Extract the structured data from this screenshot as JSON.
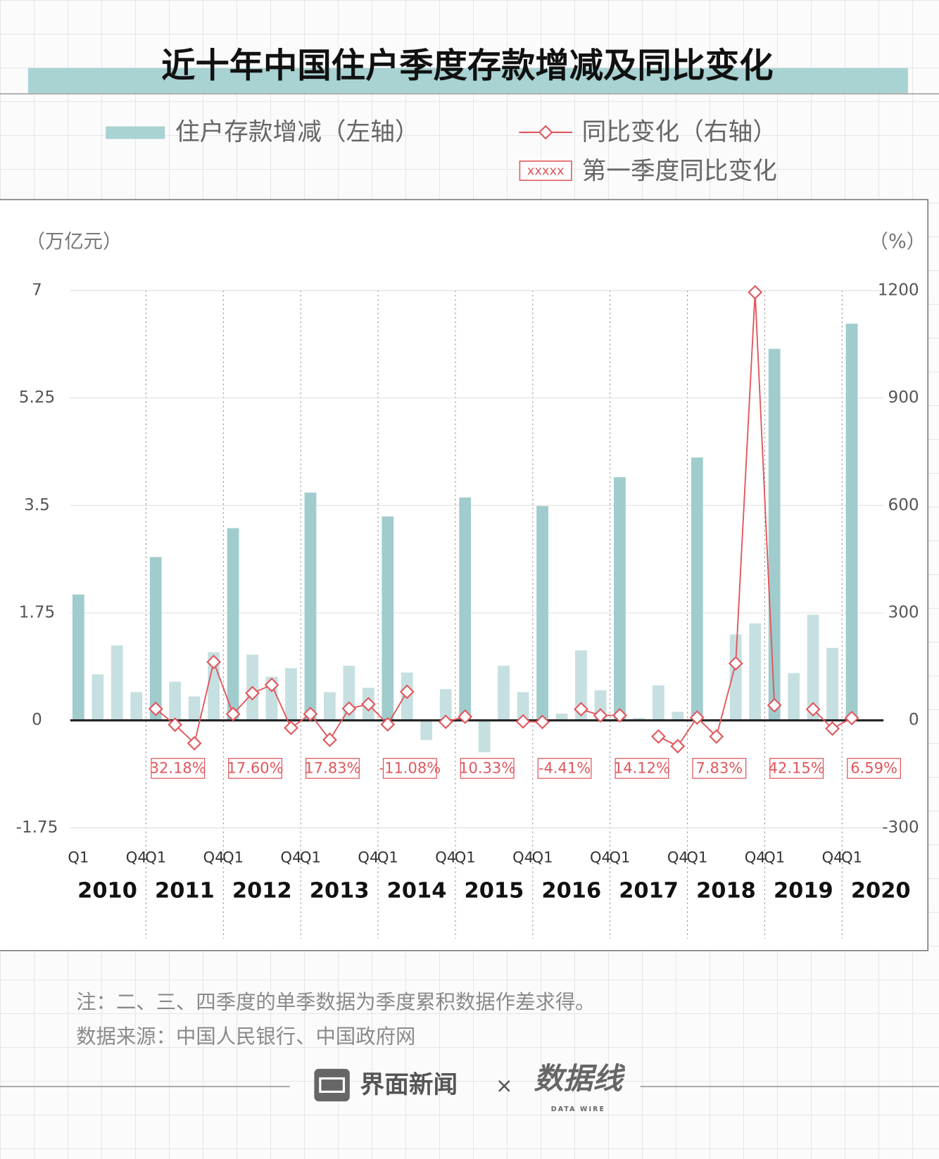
{
  "chart_data": {
    "type": "bar",
    "title": "近十年中国住户季度存款增减及同比变化",
    "y_label": "（万亿元）",
    "y2_label": "（%）",
    "categories": [
      "Q1",
      null,
      null,
      "Q4",
      "Q1",
      null,
      null,
      "Q4",
      "Q1",
      null,
      null,
      "Q4",
      "Q1",
      null,
      null,
      "Q4",
      "Q1",
      null,
      null,
      "Q4",
      "Q1",
      null,
      null,
      "Q4",
      "Q1",
      null,
      null,
      "Q4",
      "Q1",
      null,
      null,
      "Q4",
      "Q1",
      null,
      null,
      "Q4",
      "Q1",
      null,
      null,
      "Q4",
      "Q1"
    ],
    "years": [
      "2010",
      "2011",
      "2012",
      "2013",
      "2014",
      "2015",
      "2016",
      "2017",
      "2018",
      "2019",
      "2020"
    ],
    "ylim": [
      -1.75,
      7
    ],
    "yticks": [
      -1.75,
      0,
      1.75,
      3.5,
      5.25,
      7
    ],
    "y2lim": [
      -300,
      1200
    ],
    "y2ticks": [
      -300,
      0,
      300,
      600,
      900,
      1200
    ],
    "grid": true,
    "series": [
      {
        "name": "住户存款增减（左轴）",
        "type": "bar",
        "color": "#c6e0e1",
        "q1_color": "#a1cccd",
        "values": [
          2.05,
          0.75,
          1.22,
          0.46,
          2.66,
          0.63,
          0.39,
          1.11,
          3.13,
          1.07,
          0.71,
          0.85,
          3.71,
          0.46,
          0.89,
          0.53,
          3.32,
          0.78,
          -0.32,
          0.51,
          3.63,
          -0.52,
          0.89,
          0.46,
          3.49,
          0.11,
          1.14,
          0.49,
          3.96,
          0.04,
          0.57,
          0.14,
          4.28,
          0.02,
          1.4,
          1.58,
          6.05,
          0.77,
          1.72,
          1.18,
          6.46
        ]
      },
      {
        "name": "同比变化（右轴）",
        "type": "line",
        "axis": "y2",
        "color": "#e0575c",
        "values": [
          null,
          null,
          null,
          null,
          32.18,
          -12,
          -64,
          163,
          17.6,
          76,
          99,
          -21,
          17.83,
          -54,
          33,
          45,
          -11.08,
          80,
          null,
          -4,
          10.33,
          null,
          null,
          -3,
          -4.41,
          null,
          31,
          14,
          14.12,
          null,
          -45,
          -72,
          7.83,
          -45,
          159,
          1195,
          42.15,
          null,
          31,
          -23,
          6.59
        ],
        "value_labels": [
          null,
          null,
          null,
          null,
          "32.18%",
          null,
          null,
          null,
          "17.60%",
          null,
          null,
          null,
          "17.83%",
          null,
          null,
          null,
          "-11.08%",
          null,
          null,
          null,
          "10.33%",
          null,
          null,
          null,
          "-4.41%",
          null,
          null,
          null,
          "14.12%",
          null,
          null,
          null,
          "7.83%",
          null,
          null,
          null,
          "42.15%",
          null,
          null,
          null,
          "6.59%"
        ]
      }
    ],
    "label_legend": {
      "sample": "xxxxx",
      "label": "第一季度同比变化"
    }
  },
  "notes": [
    "注：二、三、四季度的单季数据为季度累积数据作差求得。",
    "数据来源：中国人民银行、中国政府网"
  ],
  "footer": {
    "brand": "界面新闻",
    "separator": "×",
    "partner": "数据线",
    "partner_sub": "DATA WIRE"
  }
}
